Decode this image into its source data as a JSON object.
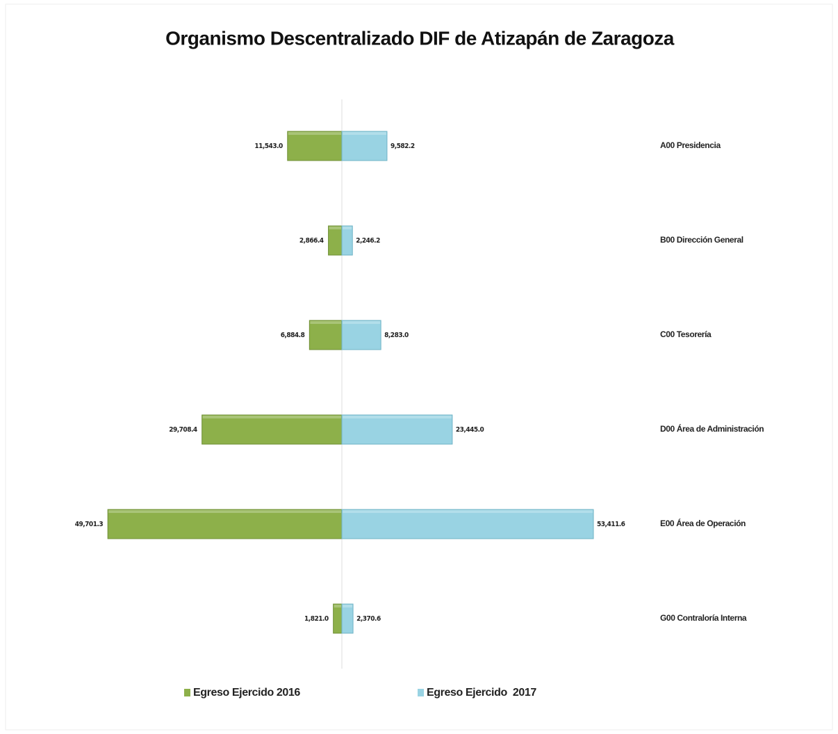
{
  "chart_data": {
    "type": "butterfly",
    "title": "Organismo Descentralizado DIF de Atizapán de Zaragoza",
    "categories": [
      "A00 Presidencia",
      "B00 Dirección General",
      "C00 Tesorería",
      "D00 Área de Administración",
      "E00 Área de Operación",
      "G00 Contraloría Interna"
    ],
    "series": [
      {
        "name": "Egreso Ejercido 2016",
        "color": "#8db04a",
        "side": "left",
        "values": [
          11543.0,
          2866.4,
          6884.8,
          29708.4,
          49701.3,
          1821.0
        ],
        "value_labels": [
          "11,543.0",
          "2,866.4",
          "6,884.8",
          "29,708.4",
          "49,701.3",
          "1,821.0"
        ]
      },
      {
        "name": "Egreso Ejercido  2017",
        "color": "#99d3e3",
        "side": "right",
        "values": [
          9582.2,
          2246.2,
          8283.0,
          23445.0,
          53411.6,
          2370.6
        ],
        "value_labels": [
          "9,582.2",
          "2,246.2",
          "8,283.0",
          "23,445.0",
          "53,411.6",
          "2,370.6"
        ]
      }
    ]
  }
}
